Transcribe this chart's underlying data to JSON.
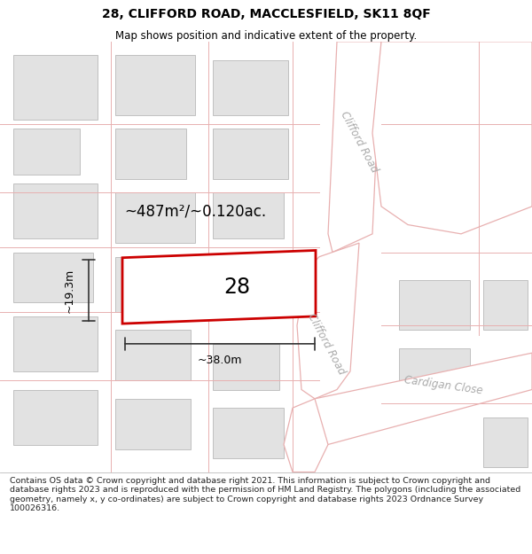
{
  "title": "28, CLIFFORD ROAD, MACCLESFIELD, SK11 8QF",
  "subtitle": "Map shows position and indicative extent of the property.",
  "footer": "Contains OS data © Crown copyright and database right 2021. This information is subject to Crown copyright and database rights 2023 and is reproduced with the permission of HM Land Registry. The polygons (including the associated geometry, namely x, y co-ordinates) are subject to Crown copyright and database rights 2023 Ordnance Survey 100026316.",
  "map_bg": "#f8f8f8",
  "building_fill": "#e2e2e2",
  "building_edge": "#c0c0c0",
  "road_fill": "#ffffff",
  "road_line_color": "#e8b0b0",
  "plot_fill": "#ffffff",
  "plot_edge": "#cc0000",
  "plot_lw": 2.0,
  "dim_color": "#333333",
  "area_label": "~487m²/~0.120ac.",
  "plot_label": "28",
  "dim_width": "~38.0m",
  "dim_height": "~19.3m",
  "road1_label": "Clifford Road",
  "road2_label": "Clifford Road",
  "road3_label": "Cardigan Close",
  "road_label_color": "#aaaaaa",
  "title_fontsize": 10,
  "subtitle_fontsize": 8.5,
  "footer_fontsize": 6.8
}
